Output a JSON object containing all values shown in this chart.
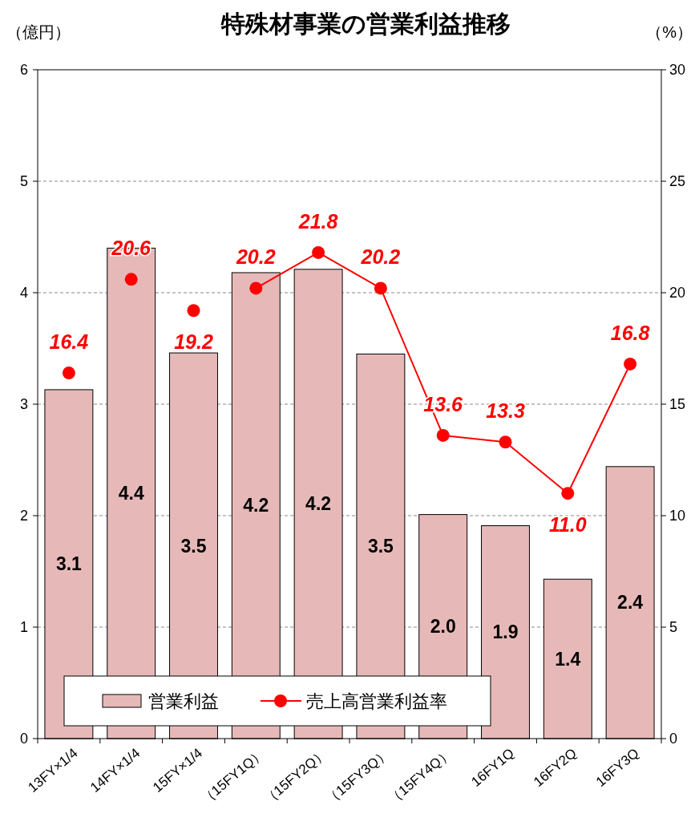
{
  "chart_data": {
    "type": "bar",
    "title": "特殊材事業の営業利益推移",
    "ylabel": "（億円）",
    "y2label": "（%）",
    "categories": [
      "13FY×1/4",
      "14FY×1/4",
      "15FY×1/4",
      "（15FY1Q）",
      "（15FY2Q）",
      "（15FY3Q）",
      "（15FY4Q）",
      "16FY1Q",
      "16FY2Q",
      "16FY3Q"
    ],
    "series": [
      {
        "name": "営業利益",
        "color": "#e6b9b8",
        "values": [
          3.13,
          4.4,
          3.46,
          4.18,
          4.21,
          3.45,
          2.01,
          1.91,
          1.43,
          2.44
        ],
        "value_labels": [
          "3.1",
          "4.4",
          "3.5",
          "4.2",
          "4.2",
          "3.5",
          "2.0",
          "1.9",
          "1.4",
          "2.4"
        ]
      },
      {
        "type": "scatter",
        "axis": "y2",
        "color": "#ff0000",
        "marker": "circle",
        "values": [
          16.4,
          20.6,
          19.2,
          null,
          null,
          null,
          null,
          null,
          null,
          null
        ],
        "value_labels": [
          "16.4",
          "20.6",
          "19.2",
          null,
          null,
          null,
          null,
          null,
          null,
          null
        ]
      },
      {
        "name": "売上高営業利益率",
        "type": "line",
        "axis": "y2",
        "color": "#ff0000",
        "marker": "circle",
        "values": [
          null,
          null,
          null,
          20.2,
          21.8,
          20.2,
          13.6,
          13.3,
          11.0,
          16.8
        ],
        "value_labels": [
          null,
          null,
          null,
          "20.2",
          "21.8",
          "20.2",
          "13.6",
          "13.3",
          "11.0",
          "16.8"
        ]
      }
    ],
    "ylim": [
      0,
      6
    ],
    "yticks": [
      0,
      1,
      2,
      3,
      4,
      5,
      6
    ],
    "y2lim": [
      0,
      30
    ],
    "y2ticks": [
      0,
      5,
      10,
      15,
      20,
      25,
      30
    ],
    "grid": "y",
    "legend": "bottom"
  }
}
